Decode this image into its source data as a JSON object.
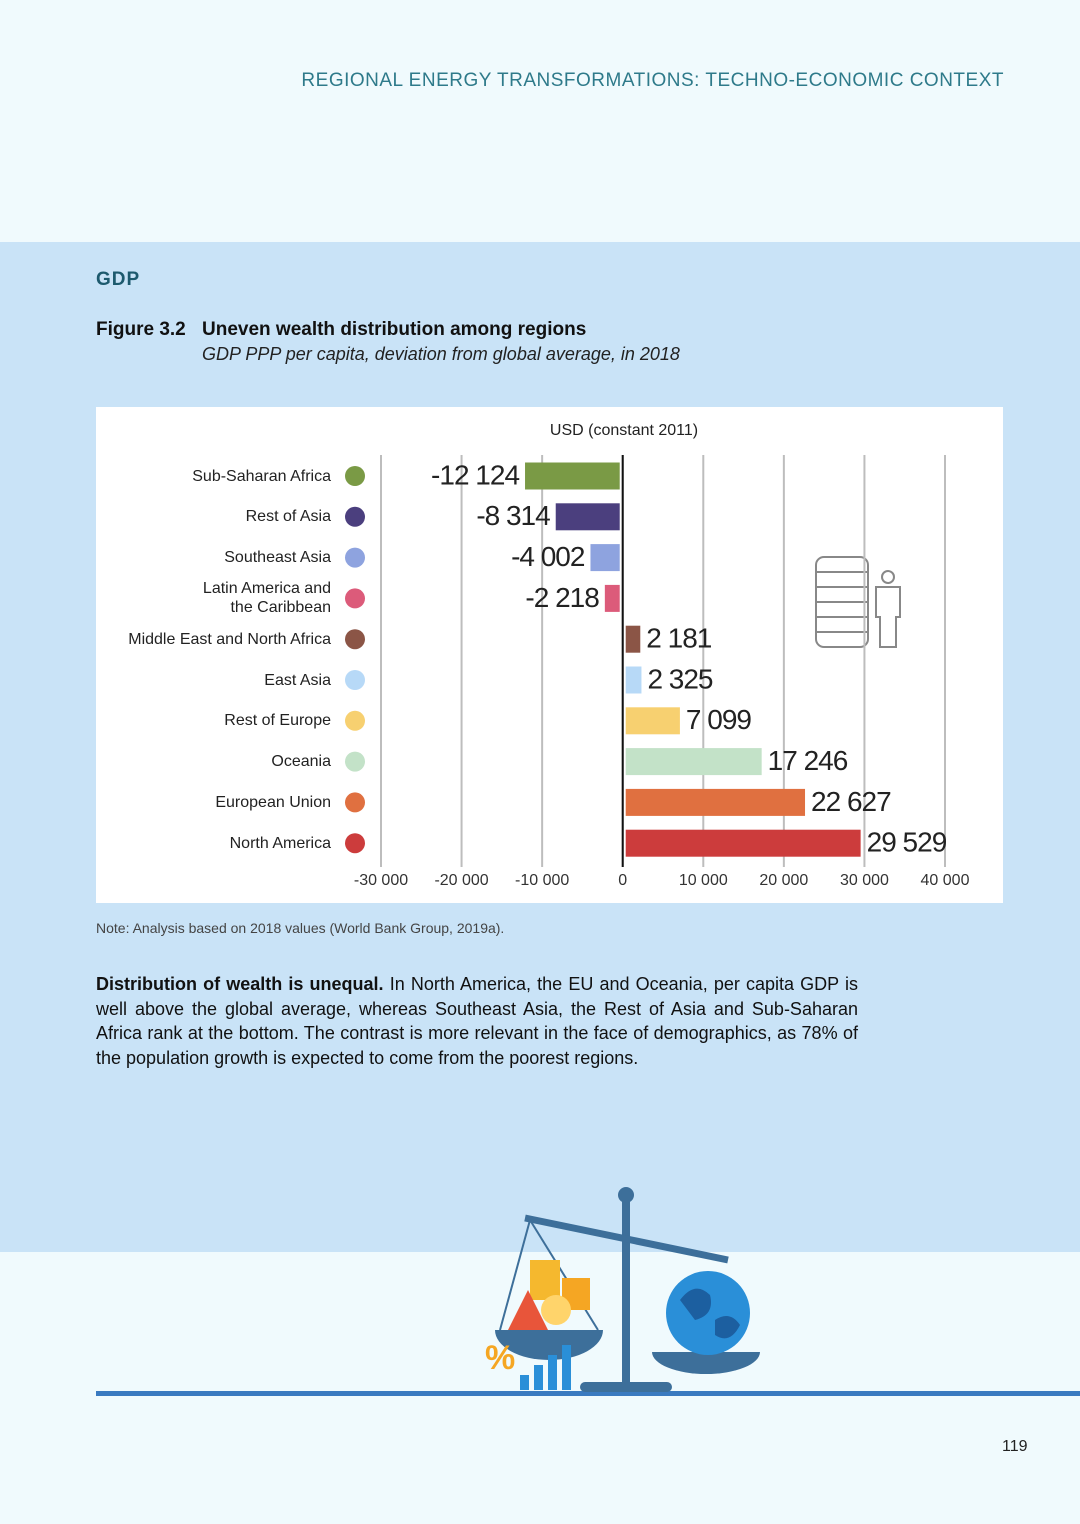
{
  "header": {
    "running_title": "REGIONAL ENERGY TRANSFORMATIONS: TECHNO-ECONOMIC CONTEXT"
  },
  "section": {
    "title": "GDP"
  },
  "figure": {
    "label": "Figure 3.2",
    "title": "Uneven wealth distribution among regions",
    "subtitle": "GDP PPP per capita, deviation from global average, in 2018"
  },
  "chart_data": {
    "type": "hbar",
    "axis_label": "USD (constant 2011)",
    "categories": [
      "Sub-Saharan Africa",
      "Rest of Asia",
      "Southeast Asia",
      "Latin America and\nthe Caribbean",
      "Middle East and North Africa",
      "East Asia",
      "Rest of Europe",
      "Oceania",
      "European Union",
      "North America"
    ],
    "values": [
      -12124,
      -8314,
      -4002,
      -2218,
      2181,
      2325,
      7099,
      17246,
      22627,
      29529
    ],
    "value_labels": [
      "-12 124",
      "-8 314",
      "-4 002",
      "-2 218",
      "2 181",
      "2 325",
      "7 099",
      "17 246",
      "22 627",
      "29 529"
    ],
    "colors": [
      "#7a9a45",
      "#4b3f7e",
      "#8ea3df",
      "#dc5b7a",
      "#8b5546",
      "#b7d9f7",
      "#f7d070",
      "#c3e2c8",
      "#e07040",
      "#cc3c3c"
    ],
    "xlim": [
      -30000,
      40000
    ],
    "xticks": [
      {
        "value": -30000,
        "label": "-30 000"
      },
      {
        "value": -20000,
        "label": "-20 000"
      },
      {
        "value": -10000,
        "label": "-10 000"
      },
      0,
      {
        "value": 10000,
        "label": "10 000"
      },
      {
        "value": 20000,
        "label": "20 000"
      },
      {
        "value": 30000,
        "label": "30 000"
      },
      {
        "value": 40000,
        "label": "40 000"
      }
    ],
    "grid": true
  },
  "note": "Note: Analysis based on 2018 values (World Bank Group, 2019a).",
  "body": {
    "lead": "Distribution of wealth is unequal.",
    "text": " In North America, the EU and Oceania, per capita GDP is well above the global average, whereas Southeast Asia, the Rest of Asia and Sub-Saharan Africa rank at the bottom. The contrast is more relevant in the face of demographics, as 78% of the population growth is expected to come from the poorest regions."
  },
  "page_number": "119"
}
